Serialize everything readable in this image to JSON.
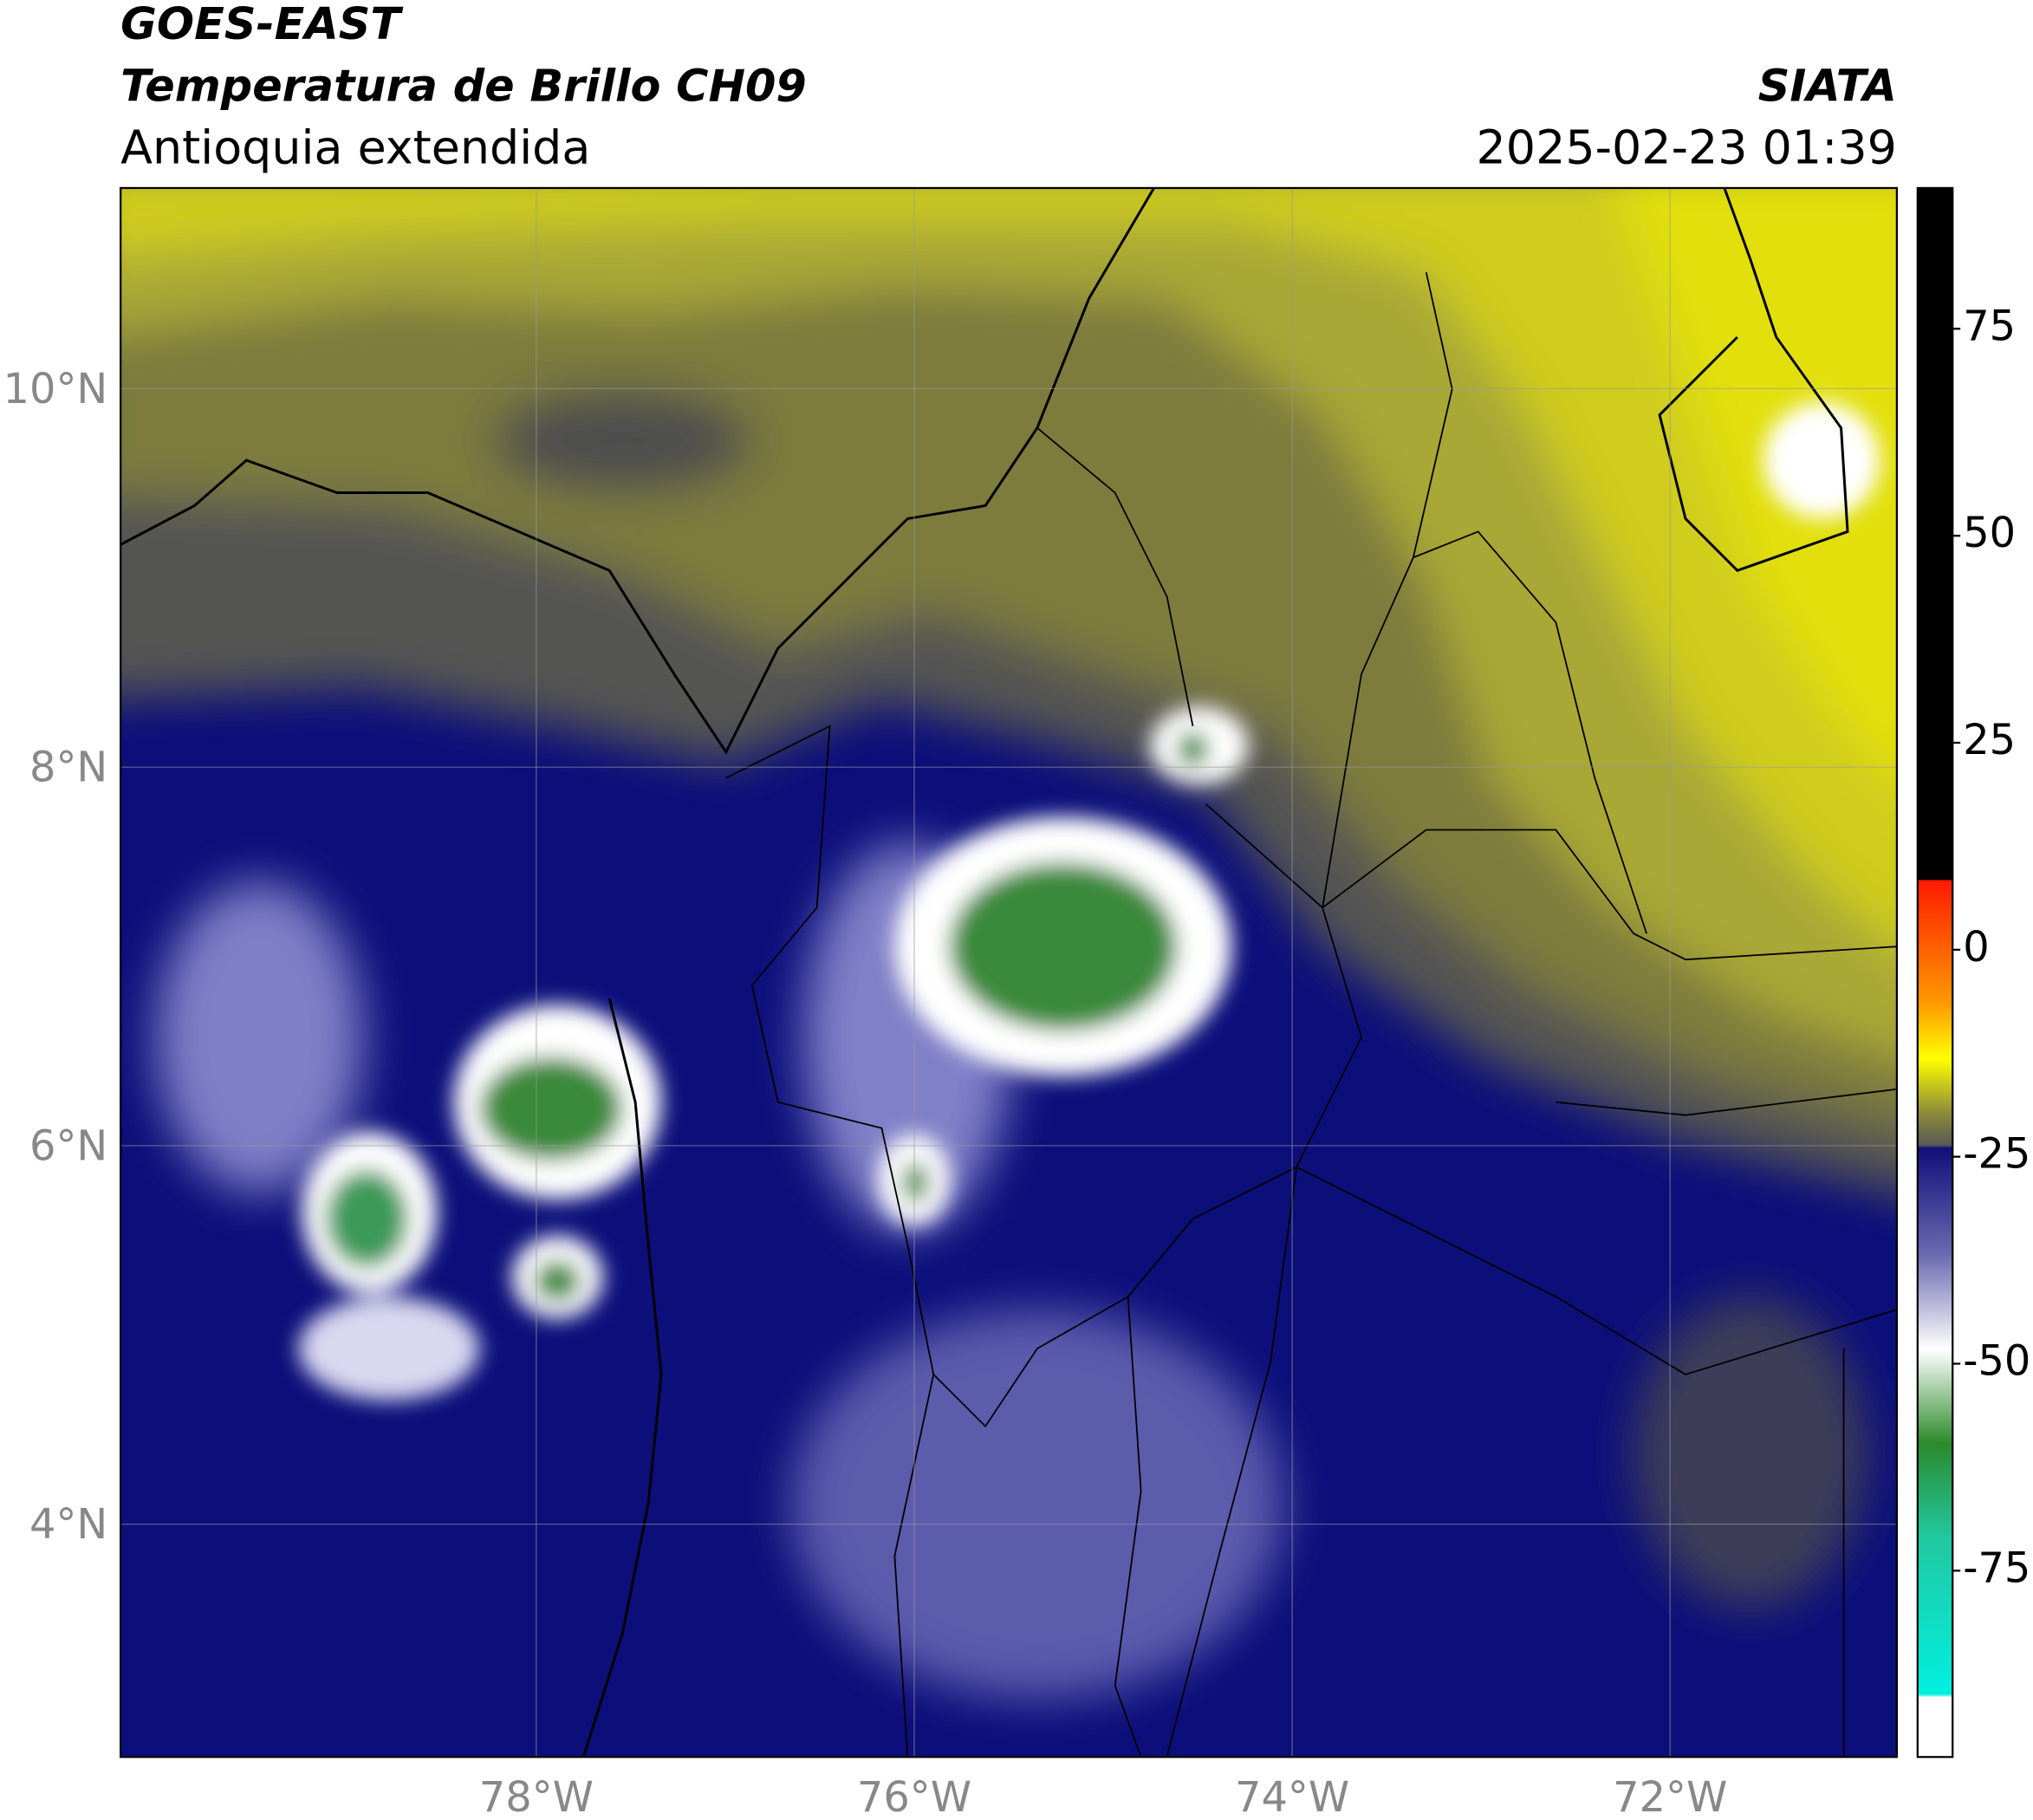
{
  "header": {
    "title": "GOES-EAST",
    "subtitle": "Temperatura de Brillo CH09",
    "region": "Antioquia extendida",
    "source": "SIATA",
    "datetime": "2025-02-23 01:39"
  },
  "map": {
    "xlim": [
      -80.2,
      -70.8
    ],
    "ylim": [
      2.77,
      11.06
    ],
    "xticks": [
      {
        "value": -78,
        "label": "78°W"
      },
      {
        "value": -76,
        "label": "76°W"
      },
      {
        "value": -74,
        "label": "74°W"
      },
      {
        "value": -72,
        "label": "72°W"
      }
    ],
    "yticks": [
      {
        "value": 4,
        "label": "4°N"
      },
      {
        "value": 6,
        "label": "6°N"
      },
      {
        "value": 8,
        "label": "8°N"
      },
      {
        "value": 10,
        "label": "10°N"
      }
    ]
  },
  "colorbar": {
    "lim": [
      -97.5,
      92
    ],
    "ticks": [
      -75,
      -50,
      -25,
      0,
      25,
      50,
      75
    ]
  }
}
